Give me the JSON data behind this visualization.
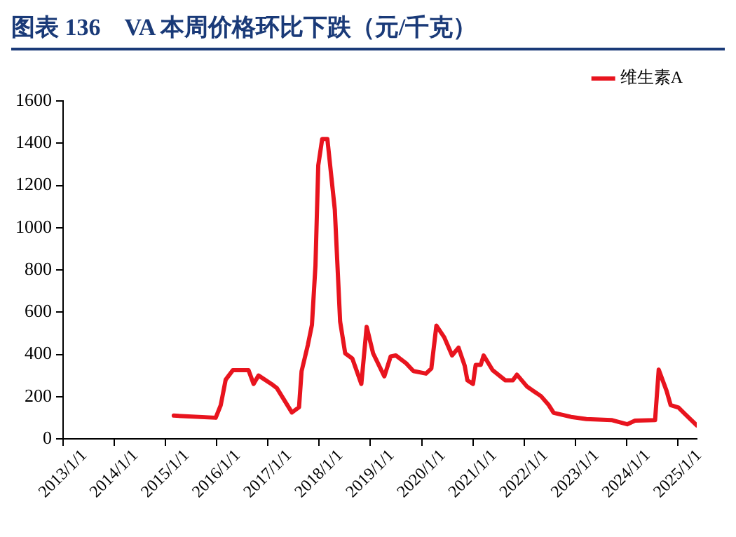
{
  "chart_data": {
    "type": "line",
    "title": "图表 136　VA 本周价格环比下跌（元/千克）",
    "x": [
      "2015-03-01",
      "2015-12-25",
      "2016-01-30",
      "2016-03-05",
      "2016-04-25",
      "2016-08-15",
      "2016-09-20",
      "2016-10-25",
      "2017-01-25",
      "2017-03-05",
      "2017-06-20",
      "2017-08-10",
      "2017-08-28",
      "2017-10-12",
      "2017-11-10",
      "2017-12-05",
      "2017-12-25",
      "2018-01-22",
      "2018-02-28",
      "2018-04-22",
      "2018-05-30",
      "2018-07-05",
      "2018-08-25",
      "2018-10-28",
      "2018-12-05",
      "2019-01-20",
      "2019-04-10",
      "2019-05-25",
      "2019-07-01",
      "2019-09-12",
      "2019-11-03",
      "2020-02-01",
      "2020-03-10",
      "2020-04-15",
      "2020-06-10",
      "2020-08-05",
      "2020-09-20",
      "2020-11-03",
      "2020-11-22",
      "2021-01-01",
      "2021-01-20",
      "2021-02-25",
      "2021-03-18",
      "2021-05-20",
      "2021-07-15",
      "2021-08-20",
      "2021-10-12",
      "2021-11-10",
      "2022-01-22",
      "2022-05-01",
      "2022-06-25",
      "2022-07-30",
      "2022-12-01",
      "2023-03-20",
      "2023-09-15",
      "2024-01-05",
      "2024-03-01",
      "2024-07-22",
      "2024-08-17",
      "2024-10-12",
      "2024-11-10",
      "2025-01-05",
      "2025-02-18",
      "2025-05-15"
    ],
    "series": [
      {
        "name": "维生素A",
        "color": "#e8141e",
        "values": [
          110,
          100,
          160,
          280,
          325,
          325,
          260,
          300,
          260,
          240,
          125,
          150,
          320,
          445,
          540,
          820,
          1295,
          1420,
          1420,
          1085,
          555,
          405,
          380,
          260,
          530,
          405,
          296,
          390,
          395,
          358,
          321,
          309,
          333,
          536,
          481,
          395,
          432,
          346,
          277,
          260,
          350,
          350,
          395,
          326,
          296,
          277,
          277,
          304,
          247,
          202,
          160,
          123,
          104,
          94,
          89,
          69,
          86,
          89,
          328,
          227,
          160,
          148,
          119,
          64
        ]
      }
    ],
    "xlim": [
      "2013-01-01",
      "2025-05-15"
    ],
    "xticks": [
      {
        "value": "2013-01-01",
        "label": "2013/1/1"
      },
      {
        "value": "2014-01-01",
        "label": "2014/1/1"
      },
      {
        "value": "2015-01-01",
        "label": "2015/1/1"
      },
      {
        "value": "2016-01-01",
        "label": "2016/1/1"
      },
      {
        "value": "2017-01-01",
        "label": "2017/1/1"
      },
      {
        "value": "2018-01-01",
        "label": "2018/1/1"
      },
      {
        "value": "2019-01-01",
        "label": "2019/1/1"
      },
      {
        "value": "2020-01-01",
        "label": "2020/1/1"
      },
      {
        "value": "2021-01-01",
        "label": "2021/1/1"
      },
      {
        "value": "2022-01-01",
        "label": "2022/1/1"
      },
      {
        "value": "2023-01-01",
        "label": "2023/1/1"
      },
      {
        "value": "2024-01-01",
        "label": "2024/1/1"
      },
      {
        "value": "2025-01-01",
        "label": "2025/1/1"
      }
    ],
    "ylim": [
      0,
      1600
    ],
    "yticks": [
      0,
      200,
      400,
      600,
      800,
      1000,
      1200,
      1400,
      1600
    ],
    "grid": false,
    "legend": "top right",
    "marker": "none",
    "line_style": "solid"
  }
}
